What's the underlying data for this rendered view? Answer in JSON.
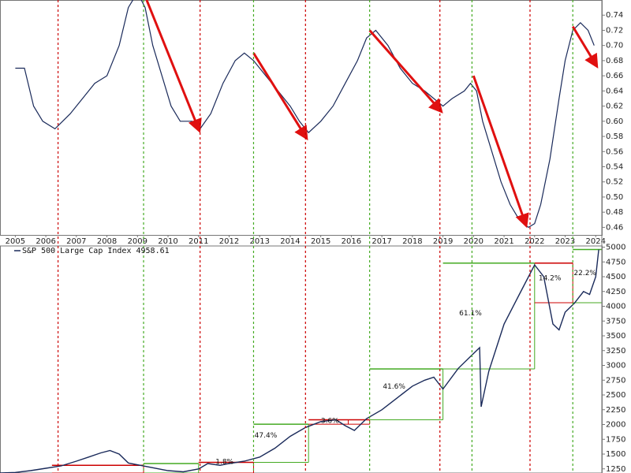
{
  "chart_data": [
    {
      "panel": "upper-ratio",
      "type": "line",
      "title": "",
      "xlabel": "",
      "ylabel": "",
      "ylim": [
        0.45,
        0.76
      ],
      "y_ticks": [
        0.46,
        0.48,
        0.5,
        0.52,
        0.54,
        0.56,
        0.58,
        0.6,
        0.62,
        0.64,
        0.66,
        0.68,
        0.7,
        0.72,
        0.74
      ],
      "x_range": [
        2004.5,
        2024.2
      ],
      "x_ticks": [
        "2005",
        "2006",
        "2007",
        "2008",
        "2009",
        "2010",
        "2011",
        "2012",
        "2013",
        "2014",
        "2015",
        "2016",
        "2017",
        "2018",
        "2019",
        "2020",
        "2021",
        "2022",
        "2023",
        "2024"
      ],
      "grid": false,
      "series": [
        {
          "x": [
            2005.0,
            2005.3,
            2005.6,
            2005.9,
            2006.3,
            2006.55,
            2006.8,
            2007.2,
            2007.6,
            2008.0,
            2008.4,
            2008.7,
            2009.0,
            2009.25,
            2009.5,
            2009.8,
            2010.1,
            2010.4,
            2010.8,
            2011.05,
            2011.4,
            2011.8,
            2012.2,
            2012.5,
            2012.8,
            2013.2,
            2013.6,
            2014.0,
            2014.3,
            2014.6,
            2015.0,
            2015.4,
            2015.8,
            2016.2,
            2016.5,
            2016.8,
            2017.2,
            2017.6,
            2018.0,
            2018.4,
            2018.7,
            2019.0,
            2019.3,
            2019.7,
            2019.9,
            2020.1,
            2020.3,
            2020.6,
            2020.9,
            2021.2,
            2021.5,
            2021.8,
            2022.0,
            2022.2,
            2022.5,
            2022.8,
            2023.0,
            2023.25,
            2023.5,
            2023.75,
            2023.95
          ],
          "y": [
            0.67,
            0.67,
            0.62,
            0.6,
            0.59,
            0.6,
            0.61,
            0.63,
            0.65,
            0.66,
            0.7,
            0.75,
            0.77,
            0.75,
            0.7,
            0.66,
            0.62,
            0.6,
            0.6,
            0.59,
            0.61,
            0.65,
            0.68,
            0.69,
            0.68,
            0.66,
            0.64,
            0.62,
            0.6,
            0.585,
            0.6,
            0.62,
            0.65,
            0.68,
            0.71,
            0.72,
            0.7,
            0.67,
            0.65,
            0.64,
            0.63,
            0.62,
            0.63,
            0.64,
            0.65,
            0.64,
            0.6,
            0.56,
            0.52,
            0.49,
            0.47,
            0.46,
            0.465,
            0.49,
            0.55,
            0.63,
            0.68,
            0.72,
            0.73,
            0.72,
            0.7
          ]
        }
      ],
      "arrows": [
        {
          "x": [
            2009.3,
            2011.0
          ],
          "y": [
            0.76,
            0.59
          ]
        },
        {
          "x": [
            2012.8,
            2014.5
          ],
          "y": [
            0.69,
            0.58
          ]
        },
        {
          "x": [
            2016.6,
            2018.9
          ],
          "y": [
            0.72,
            0.615
          ]
        },
        {
          "x": [
            2020.0,
            2021.7
          ],
          "y": [
            0.66,
            0.465
          ]
        },
        {
          "x": [
            2023.25,
            2024.0
          ],
          "y": [
            0.725,
            0.675
          ]
        }
      ]
    },
    {
      "panel": "lower-price",
      "type": "line",
      "title": "",
      "xlabel": "",
      "ylabel": "",
      "ylim": [
        1180,
        5020
      ],
      "y_ticks": [
        1250,
        1500,
        1750,
        2000,
        2250,
        2500,
        2750,
        3000,
        3250,
        3500,
        3750,
        4000,
        4250,
        4500,
        4750,
        5000
      ],
      "x_range": [
        2004.5,
        2024.2
      ],
      "grid": false,
      "legend": "S&P 500 Large Cap Index 4958.61",
      "series": [
        {
          "name": "S&P 500 Large Cap Index",
          "x": [
            2004.5,
            2005.0,
            2005.5,
            2006.0,
            2006.5,
            2007.0,
            2007.4,
            2007.8,
            2008.1,
            2008.4,
            2008.7,
            2010.0,
            2010.5,
            2011.0,
            2011.3,
            2011.7,
            2012.0,
            2012.5,
            2013.0,
            2013.5,
            2014.0,
            2014.5,
            2015.0,
            2015.5,
            2015.8,
            2016.1,
            2016.5,
            2017.0,
            2017.5,
            2018.0,
            2018.4,
            2018.7,
            2019.0,
            2019.5,
            2020.0,
            2020.2,
            2020.25,
            2020.5,
            2021.0,
            2021.5,
            2022.0,
            2022.3,
            2022.6,
            2022.8,
            2023.0,
            2023.3,
            2023.6,
            2023.8,
            2024.0,
            2024.1
          ],
          "y": [
            1180,
            1190,
            1220,
            1260,
            1300,
            1380,
            1450,
            1520,
            1560,
            1500,
            1350,
            1220,
            1200,
            1250,
            1340,
            1310,
            1340,
            1380,
            1450,
            1600,
            1800,
            1950,
            2050,
            2080,
            1980,
            1900,
            2100,
            2250,
            2450,
            2650,
            2750,
            2800,
            2600,
            2950,
            3200,
            3300,
            2300,
            2900,
            3700,
            4200,
            4700,
            4500,
            3700,
            3600,
            3900,
            4050,
            4250,
            4200,
            4500,
            4958
          ]
        }
      ],
      "annotations": [
        {
          "label": "1.8%",
          "x": 2011.85,
          "y": 1335
        },
        {
          "label": "47.4%",
          "x": 2013.2,
          "y": 1780
        },
        {
          "label": "3.6%",
          "x": 2015.3,
          "y": 2030
        },
        {
          "label": "41.6%",
          "x": 2017.4,
          "y": 2610
        },
        {
          "label": "61.1%",
          "x": 2019.9,
          "y": 3850
        },
        {
          "label": "14.2%",
          "x": 2022.5,
          "y": 4440
        },
        {
          "label": "22.2%",
          "x": 2023.65,
          "y": 4530
        }
      ],
      "boxes": [
        {
          "x0": 2006.2,
          "x1": 2009.2,
          "y0": 1180,
          "y1": 1310,
          "color": "#cc0000"
        },
        {
          "x0": 2009.2,
          "x1": 2011.0,
          "y0": 1180,
          "y1": 1340,
          "color": "#44aa22"
        },
        {
          "x0": 2011.0,
          "x1": 2012.8,
          "y0": 1180,
          "y1": 1360,
          "color": "#cc0000"
        },
        {
          "x0": 2012.8,
          "x1": 2014.6,
          "y0": 1360,
          "y1": 2005,
          "color": "#44aa22"
        },
        {
          "x0": 2014.6,
          "x1": 2015.9,
          "y0": 2005,
          "y1": 2080,
          "color": "#cc0000"
        },
        {
          "x0": 2015.9,
          "x1": 2016.6,
          "y0": 2005,
          "y1": 2080,
          "color": "#cc0000"
        },
        {
          "x0": 2016.6,
          "x1": 2019.0,
          "y0": 2080,
          "y1": 2940,
          "color": "#44aa22"
        },
        {
          "x0": 2019.0,
          "x1": 2022.0,
          "y0": 2940,
          "y1": 4730,
          "color": "#44aa22"
        },
        {
          "x0": 2022.0,
          "x1": 2023.25,
          "y0": 4060,
          "y1": 4730,
          "color": "#cc0000"
        },
        {
          "x0": 2023.25,
          "x1": 2024.2,
          "y0": 4060,
          "y1": 4960,
          "color": "#44aa22"
        }
      ]
    }
  ],
  "vlines": [
    {
      "x": 2006.4,
      "color": "#cc0000"
    },
    {
      "x": 2009.2,
      "color": "#44aa22"
    },
    {
      "x": 2011.05,
      "color": "#cc0000"
    },
    {
      "x": 2012.8,
      "color": "#44aa22"
    },
    {
      "x": 2014.5,
      "color": "#cc0000"
    },
    {
      "x": 2016.6,
      "color": "#44aa22"
    },
    {
      "x": 2018.9,
      "color": "#cc0000"
    },
    {
      "x": 2019.95,
      "color": "#44aa22"
    },
    {
      "x": 2021.85,
      "color": "#cc0000"
    },
    {
      "x": 2023.25,
      "color": "#44aa22"
    }
  ],
  "colors": {
    "line": "#1a2a5a",
    "arrow": "#e01010",
    "red": "#cc0000",
    "green": "#44aa22"
  }
}
